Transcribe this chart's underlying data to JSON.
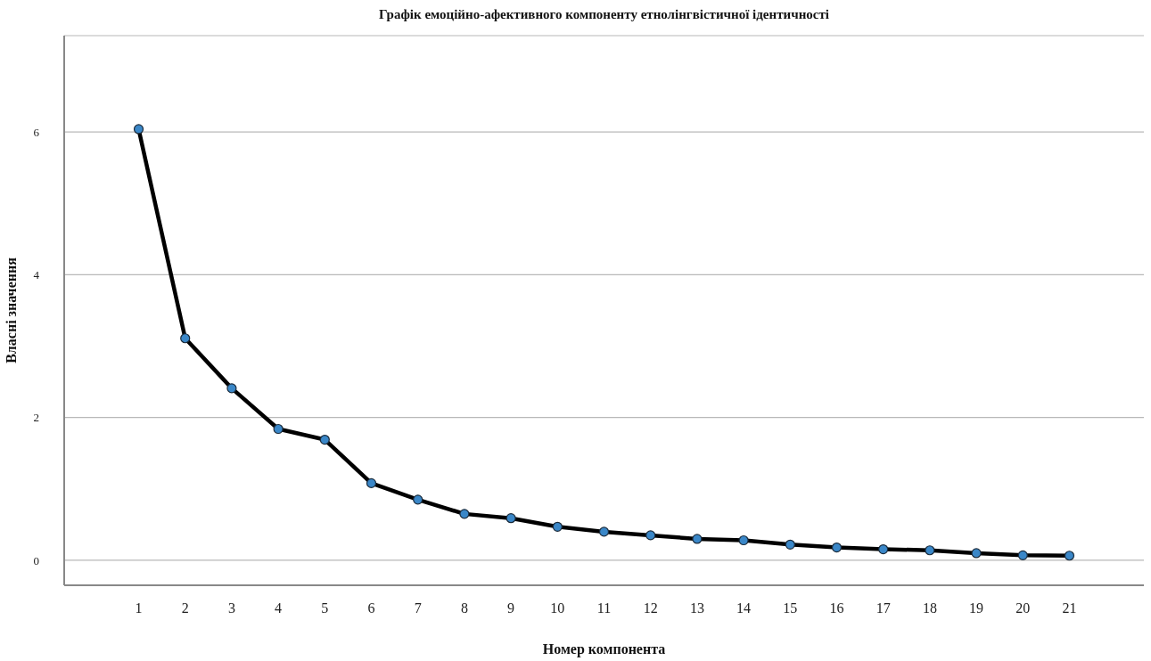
{
  "chart_data": {
    "type": "line",
    "title": "Графік емоційно-афективного компоненту етнолінгвістичної ідентичності",
    "xlabel": "Номер компонента",
    "ylabel": "Власні значення",
    "x": [
      1,
      2,
      3,
      4,
      5,
      6,
      7,
      8,
      9,
      10,
      11,
      12,
      13,
      14,
      15,
      16,
      17,
      18,
      19,
      20,
      21
    ],
    "series": [
      {
        "color": "#000000",
        "values": [
          6.04,
          3.11,
          2.41,
          1.84,
          1.69,
          1.08,
          0.85,
          0.65,
          0.59,
          0.47,
          0.4,
          0.35,
          0.3,
          0.28,
          0.22,
          0.18,
          0.155,
          0.14,
          0.1,
          0.07,
          0.065
        ]
      }
    ],
    "xlim": [
      -0.6,
      22.6
    ],
    "xticks": [
      1,
      2,
      3,
      4,
      5,
      6,
      7,
      8,
      9,
      10,
      11,
      12,
      13,
      14,
      15,
      16,
      17,
      18,
      19,
      20,
      21
    ],
    "ylim": [
      -0.35,
      7.35
    ],
    "yticks": [
      0,
      2,
      4,
      6
    ],
    "grid": "y",
    "marker": "circle",
    "line_style": "solid",
    "legend": false
  }
}
